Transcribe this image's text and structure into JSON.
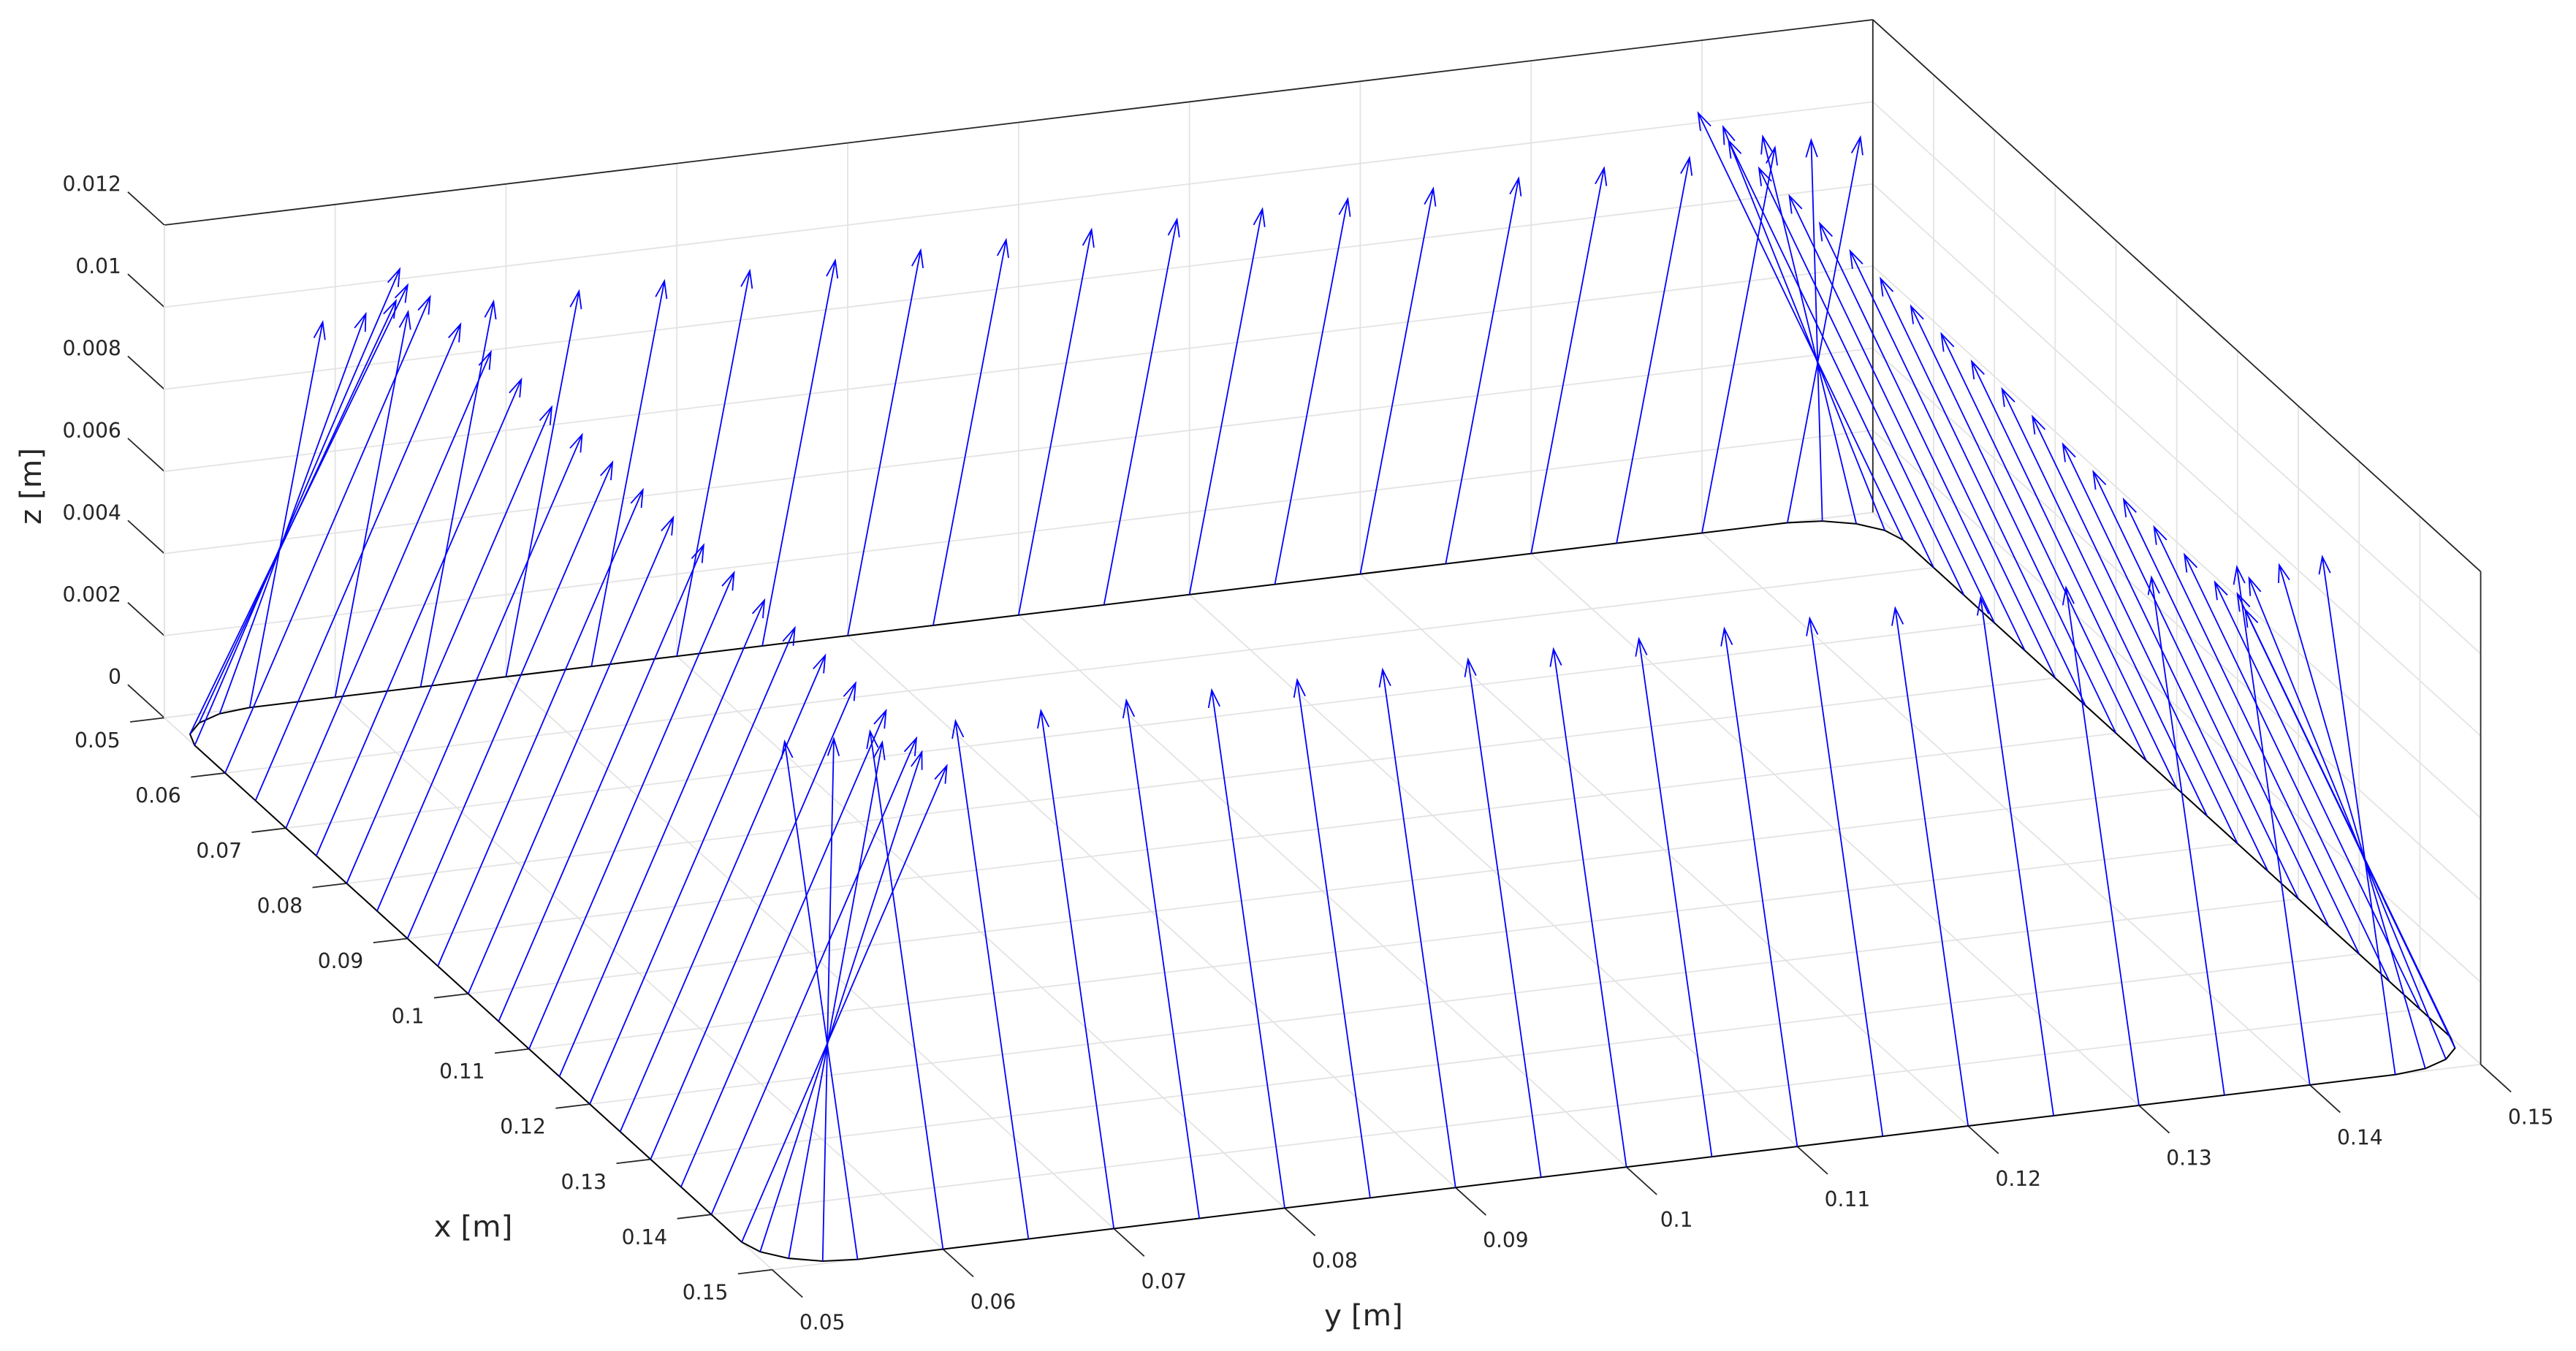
{
  "chart_data": {
    "type": "quiver3",
    "xlabel": "x [m]",
    "ylabel": "y [m]",
    "zlabel": "z [m]",
    "xlim": [
      0.05,
      0.15
    ],
    "ylim": [
      0.05,
      0.15
    ],
    "zlim": [
      0,
      0.012
    ],
    "xticks": [
      0.05,
      0.06,
      0.07,
      0.08,
      0.09,
      0.1,
      0.11,
      0.12,
      0.13,
      0.14,
      0.15
    ],
    "yticks": [
      0.05,
      0.06,
      0.07,
      0.08,
      0.09,
      0.1,
      0.11,
      0.12,
      0.13,
      0.14,
      0.15
    ],
    "zticks": [
      0,
      0.002,
      0.004,
      0.006,
      0.008,
      0.01,
      0.012
    ],
    "grid": true,
    "color": "#0000ff",
    "path_color": "#000000",
    "x": [
      0.055,
      0.06,
      0.065,
      0.07,
      0.075,
      0.08,
      0.085,
      0.09,
      0.095,
      0.1,
      0.105,
      0.11,
      0.115,
      0.12,
      0.125,
      0.13,
      0.135,
      0.14,
      0.145,
      0.1469,
      0.1485,
      0.1496,
      0.15,
      0.15,
      0.15,
      0.15,
      0.15,
      0.15,
      0.15,
      0.15,
      0.15,
      0.15,
      0.15,
      0.15,
      0.15,
      0.15,
      0.15,
      0.15,
      0.15,
      0.15,
      0.15,
      0.1496,
      0.1485,
      0.1469,
      0.145,
      0.14,
      0.135,
      0.13,
      0.125,
      0.12,
      0.115,
      0.11,
      0.105,
      0.1,
      0.095,
      0.09,
      0.085,
      0.08,
      0.075,
      0.07,
      0.065,
      0.06,
      0.055,
      0.0531,
      0.0515,
      0.0504,
      0.05,
      0.05,
      0.05,
      0.05,
      0.05,
      0.05,
      0.05,
      0.05,
      0.05,
      0.05,
      0.05,
      0.05,
      0.05,
      0.05,
      0.05,
      0.05,
      0.05,
      0.05,
      0.05,
      0.0504,
      0.0515,
      0.0531
    ],
    "y": [
      0.05,
      0.05,
      0.05,
      0.05,
      0.05,
      0.05,
      0.05,
      0.05,
      0.05,
      0.05,
      0.05,
      0.05,
      0.05,
      0.05,
      0.05,
      0.05,
      0.05,
      0.05,
      0.05,
      0.0504,
      0.0515,
      0.0531,
      0.055,
      0.06,
      0.065,
      0.07,
      0.075,
      0.08,
      0.085,
      0.09,
      0.095,
      0.1,
      0.105,
      0.11,
      0.115,
      0.12,
      0.125,
      0.13,
      0.135,
      0.14,
      0.145,
      0.1469,
      0.1485,
      0.1496,
      0.15,
      0.15,
      0.15,
      0.15,
      0.15,
      0.15,
      0.15,
      0.15,
      0.15,
      0.15,
      0.15,
      0.15,
      0.15,
      0.15,
      0.15,
      0.15,
      0.15,
      0.15,
      0.15,
      0.1496,
      0.1485,
      0.1469,
      0.145,
      0.14,
      0.135,
      0.13,
      0.125,
      0.12,
      0.115,
      0.11,
      0.105,
      0.1,
      0.095,
      0.09,
      0.085,
      0.08,
      0.075,
      0.07,
      0.065,
      0.06,
      0.055,
      0.0531,
      0.0515,
      0.0504
    ],
    "z": [
      0,
      0,
      0,
      0,
      0,
      0,
      0,
      0,
      0,
      0,
      0,
      0,
      0,
      0,
      0,
      0,
      0,
      0,
      0,
      0,
      0,
      0,
      0,
      0,
      0,
      0,
      0,
      0,
      0,
      0,
      0,
      0,
      0,
      0,
      0,
      0,
      0,
      0,
      0,
      0,
      0,
      0,
      0,
      0,
      0,
      0,
      0,
      0,
      0,
      0,
      0,
      0,
      0,
      0,
      0,
      0,
      0,
      0,
      0,
      0,
      0,
      0,
      0,
      0,
      0,
      0,
      0,
      0,
      0,
      0,
      0,
      0,
      0,
      0,
      0,
      0,
      0,
      0,
      0,
      0,
      0,
      0,
      0,
      0,
      0,
      0,
      0,
      0
    ],
    "u": [
      0,
      0,
      0,
      0,
      0,
      0,
      0,
      0,
      0,
      0,
      0,
      0,
      0,
      0,
      0,
      0,
      0,
      0,
      0,
      -0.0046,
      -0.0085,
      -0.0111,
      -0.012,
      -0.012,
      -0.012,
      -0.012,
      -0.012,
      -0.012,
      -0.012,
      -0.012,
      -0.012,
      -0.012,
      -0.012,
      -0.012,
      -0.012,
      -0.012,
      -0.012,
      -0.012,
      -0.012,
      -0.012,
      -0.012,
      -0.0111,
      -0.0085,
      -0.0046,
      0,
      0,
      0,
      0,
      0,
      0,
      0,
      0,
      0,
      0,
      0,
      0,
      0,
      0,
      0,
      0,
      0,
      0,
      0,
      0.0046,
      0.0085,
      0.0111,
      0.012,
      0.012,
      0.012,
      0.012,
      0.012,
      0.012,
      0.012,
      0.012,
      0.012,
      0.012,
      0.012,
      0.012,
      0.012,
      0.012,
      0.012,
      0.012,
      0.012,
      0.012,
      0.012,
      0.0111,
      0.0085,
      0.0046
    ],
    "v": [
      0.012,
      0.012,
      0.012,
      0.012,
      0.012,
      0.012,
      0.012,
      0.012,
      0.012,
      0.012,
      0.012,
      0.012,
      0.012,
      0.012,
      0.012,
      0.012,
      0.012,
      0.012,
      0.012,
      0.0111,
      0.0085,
      0.0046,
      0,
      0,
      0,
      0,
      0,
      0,
      0,
      0,
      0,
      0,
      0,
      0,
      0,
      0,
      0,
      0,
      0,
      0,
      0,
      -0.0046,
      -0.0085,
      -0.0111,
      -0.012,
      -0.012,
      -0.012,
      -0.012,
      -0.012,
      -0.012,
      -0.012,
      -0.012,
      -0.012,
      -0.012,
      -0.012,
      -0.012,
      -0.012,
      -0.012,
      -0.012,
      -0.012,
      -0.012,
      -0.012,
      -0.012,
      -0.0111,
      -0.0085,
      -0.0046,
      0,
      0,
      0,
      0,
      0,
      0,
      0,
      0,
      0,
      0,
      0,
      0,
      0,
      0,
      0,
      0,
      0,
      0,
      0,
      0.0046,
      0.0085,
      0.0111
    ],
    "w": [
      0.011,
      0.011,
      0.011,
      0.011,
      0.011,
      0.011,
      0.011,
      0.011,
      0.011,
      0.011,
      0.011,
      0.011,
      0.011,
      0.011,
      0.011,
      0.011,
      0.011,
      0.011,
      0.011,
      0.011,
      0.011,
      0.011,
      0.011,
      0.011,
      0.011,
      0.011,
      0.011,
      0.011,
      0.011,
      0.011,
      0.011,
      0.011,
      0.011,
      0.011,
      0.011,
      0.011,
      0.011,
      0.011,
      0.011,
      0.011,
      0.011,
      0.011,
      0.011,
      0.011,
      0.011,
      0.011,
      0.011,
      0.011,
      0.011,
      0.011,
      0.011,
      0.011,
      0.011,
      0.011,
      0.011,
      0.011,
      0.011,
      0.011,
      0.011,
      0.011,
      0.011,
      0.011,
      0.011,
      0.011,
      0.011,
      0.011,
      0.011,
      0.011,
      0.011,
      0.011,
      0.011,
      0.011,
      0.011,
      0.011,
      0.011,
      0.011,
      0.011,
      0.011,
      0.011,
      0.011,
      0.011,
      0.011,
      0.011,
      0.011,
      0.011,
      0.011,
      0.011,
      0.011
    ]
  }
}
